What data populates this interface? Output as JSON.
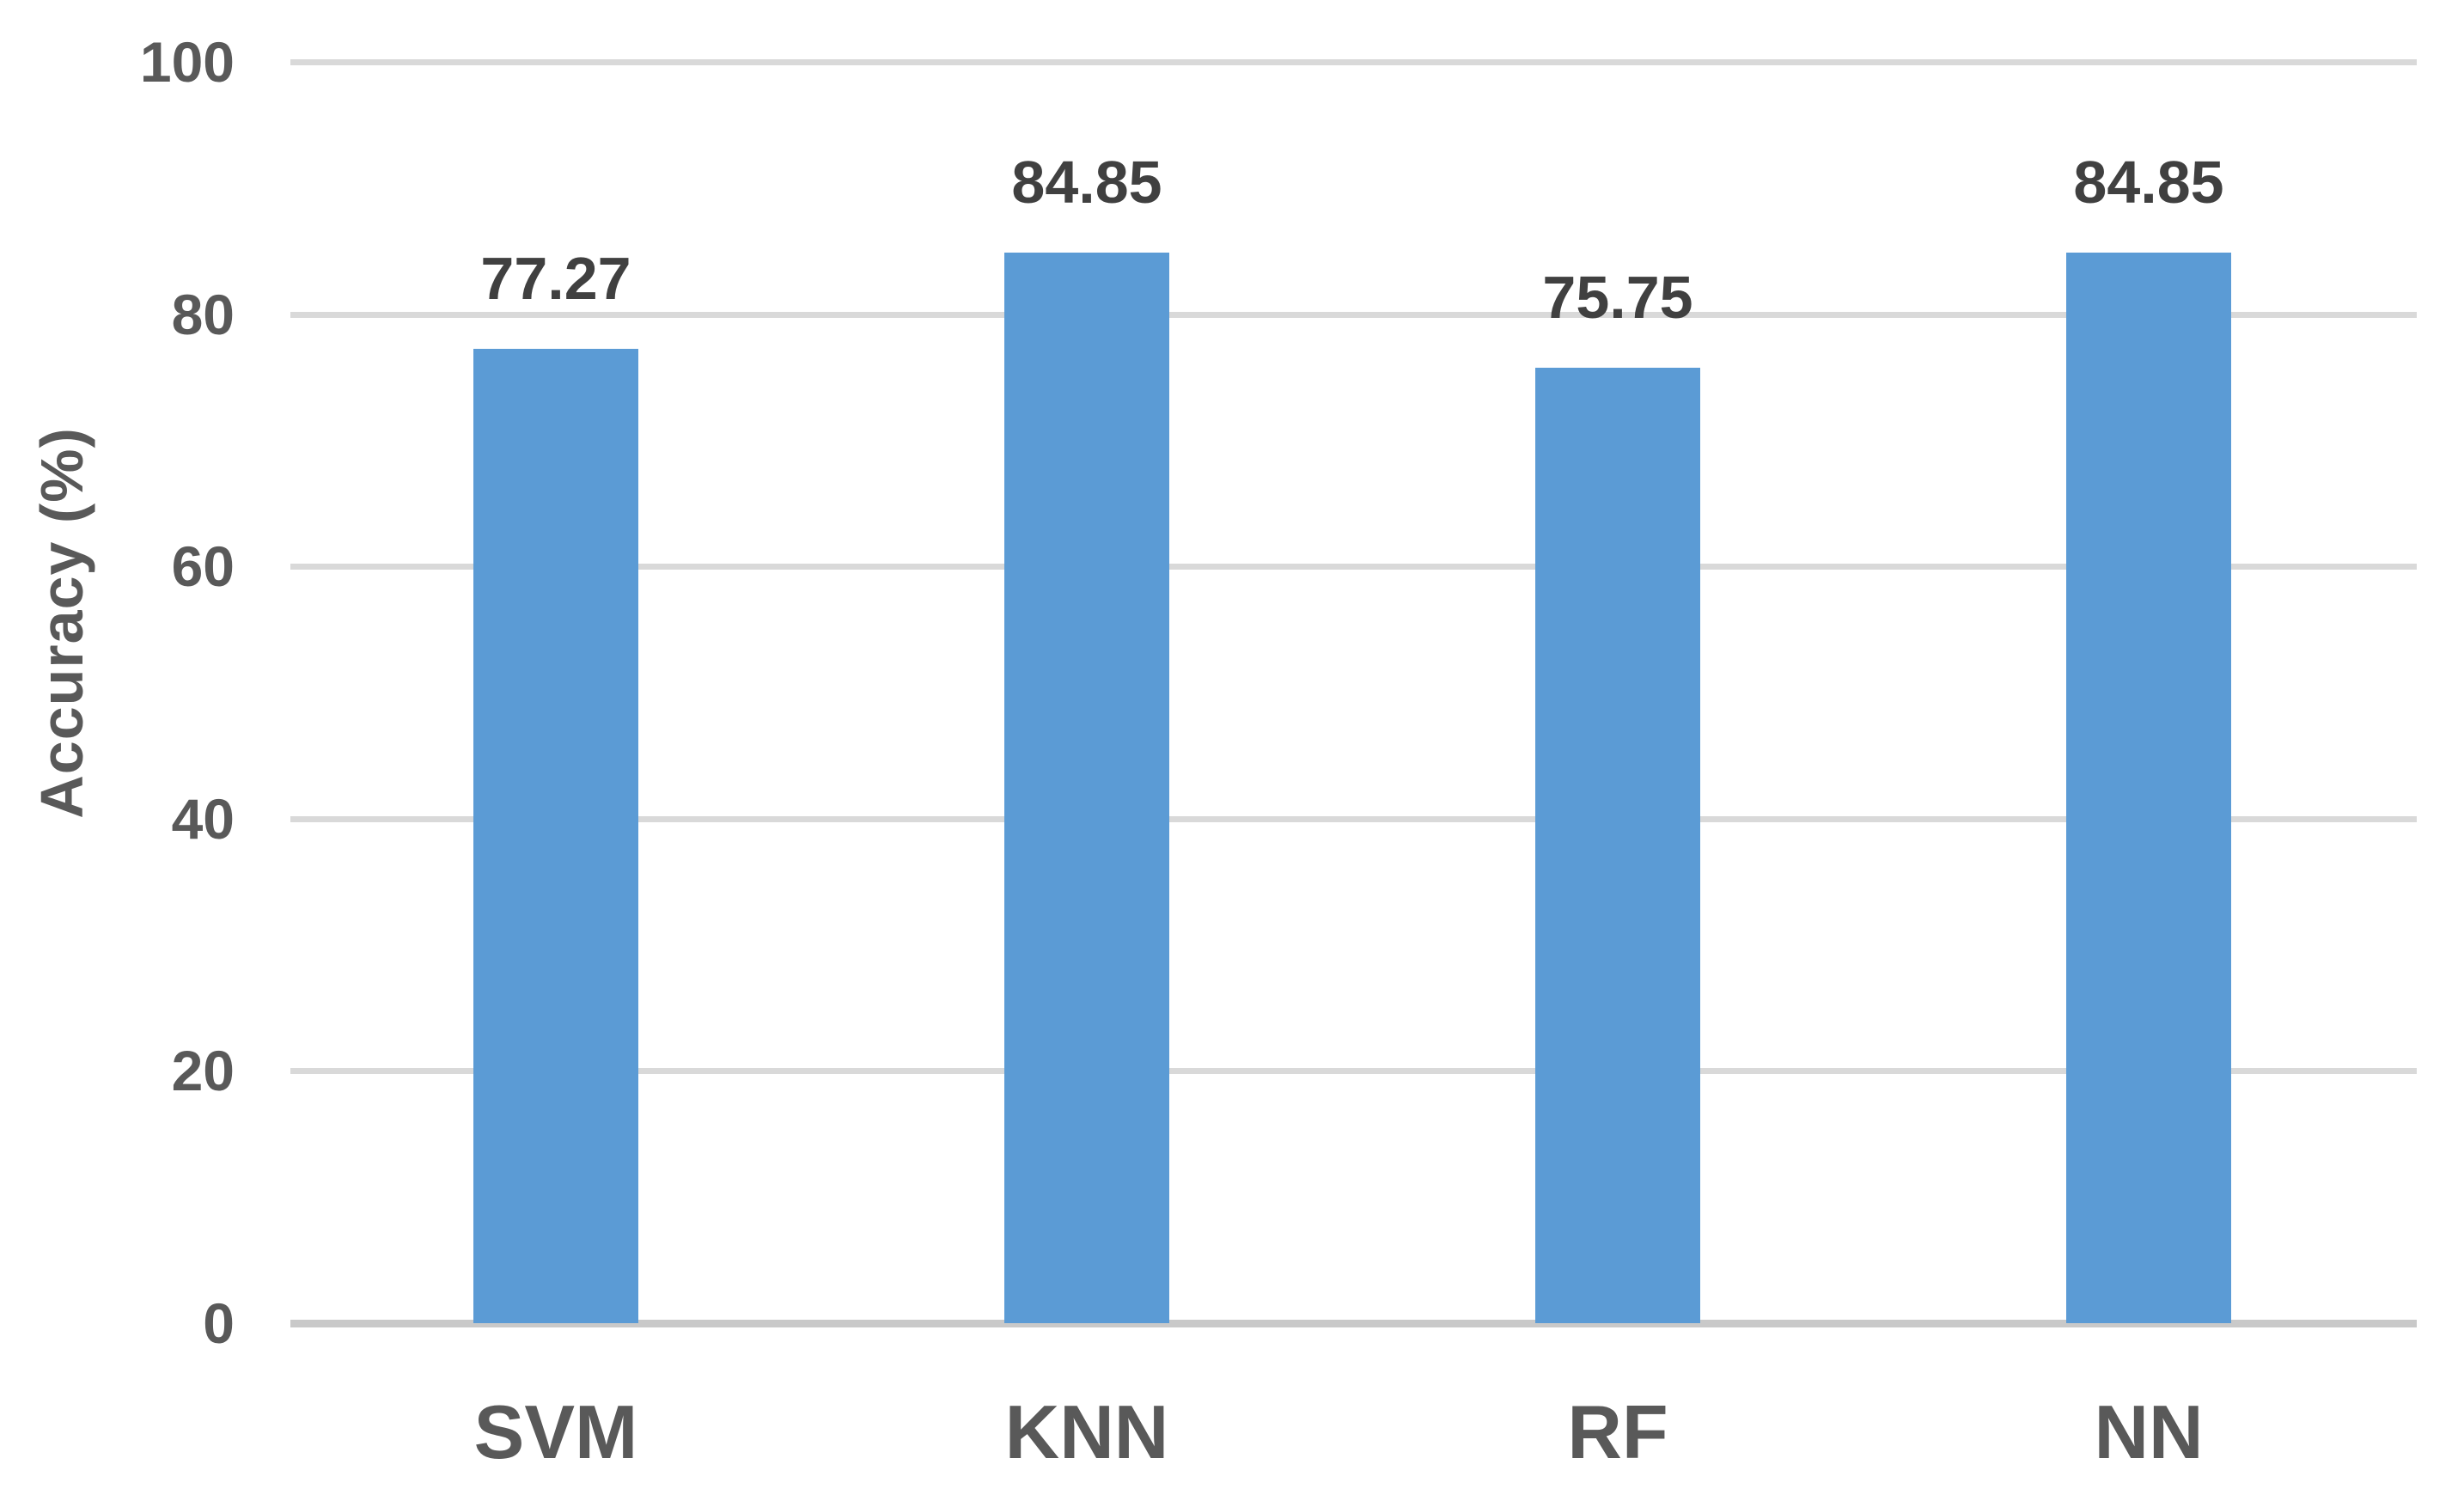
{
  "chart_data": {
    "type": "bar",
    "title": "",
    "categories": [
      "SVM",
      "KNN",
      "RF",
      "NN"
    ],
    "values": [
      77.27,
      84.85,
      75.75,
      84.85
    ],
    "data_labels": [
      "77.27",
      "84.85",
      "75.75",
      "84.85"
    ],
    "xlabel": "",
    "ylabel": "Accuracy (%)",
    "ylim": [
      0,
      100
    ],
    "yticks": [
      0,
      20,
      40,
      60,
      80,
      100
    ],
    "grid": "horizontal-major",
    "legend": "none",
    "colors": {
      "bar": "#5B9BD5",
      "gridline": "#D9D9D9",
      "axis_line": "#C9C9C9",
      "tick_label": "#595959",
      "data_label": "#404040",
      "category_label": "#595959",
      "axis_title": "#595959",
      "background": "#FFFFFF"
    }
  }
}
